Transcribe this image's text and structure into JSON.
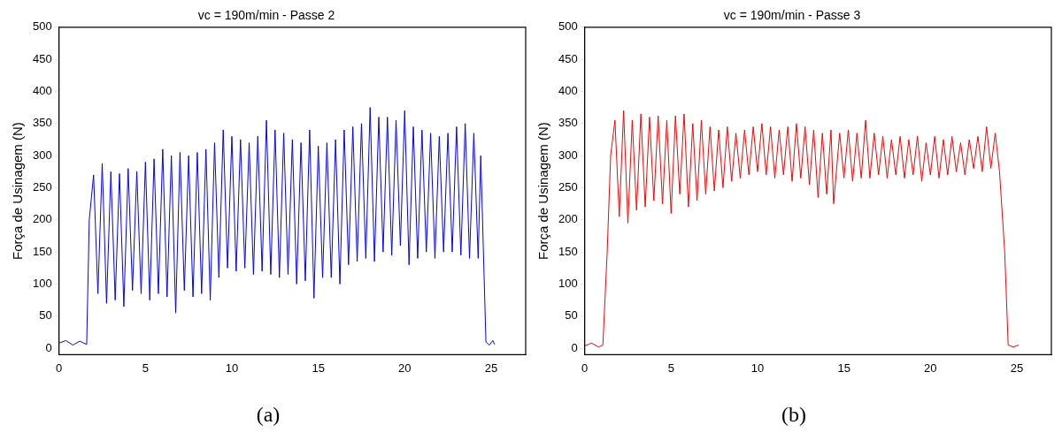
{
  "chart_data": [
    {
      "type": "line",
      "title": "vc = 190m/min - Passe 2",
      "ylabel": "Força de Usinagem (N)",
      "xlim": [
        0,
        27
      ],
      "xticks": [
        0,
        5,
        10,
        15,
        20,
        25
      ],
      "ylim": [
        -10,
        500
      ],
      "yticks": [
        0,
        50,
        100,
        150,
        200,
        250,
        300,
        350,
        400,
        450,
        500
      ],
      "grid": false,
      "annotations": [
        "(a)"
      ],
      "series": [
        {
          "color": "#0000ff",
          "x": [
            0,
            0.4,
            0.8,
            1.2,
            1.6,
            1.75,
            2,
            2.25,
            2.5,
            2.75,
            3,
            3.25,
            3.5,
            3.75,
            4,
            4.25,
            4.5,
            4.75,
            5,
            5.25,
            5.5,
            5.75,
            6,
            6.25,
            6.5,
            6.75,
            7,
            7.25,
            7.5,
            7.75,
            8,
            8.25,
            8.5,
            8.75,
            9,
            9.25,
            9.5,
            9.75,
            10,
            10.25,
            10.5,
            10.75,
            11,
            11.25,
            11.5,
            11.75,
            12,
            12.25,
            12.5,
            12.75,
            13,
            13.25,
            13.5,
            13.75,
            14,
            14.25,
            14.5,
            14.75,
            15,
            15.25,
            15.5,
            15.75,
            16,
            16.25,
            16.5,
            16.75,
            17,
            17.25,
            17.5,
            17.75,
            18,
            18.25,
            18.5,
            18.75,
            19,
            19.25,
            19.5,
            19.75,
            20,
            20.25,
            20.5,
            20.75,
            21,
            21.25,
            21.5,
            21.75,
            22,
            22.25,
            22.5,
            22.75,
            23,
            23.25,
            23.5,
            23.75,
            24,
            24.25,
            24.4,
            24.7,
            24.9,
            25.1,
            25.2
          ],
          "values": [
            8,
            12,
            5,
            11,
            6,
            200,
            270,
            85,
            288,
            70,
            275,
            75,
            272,
            65,
            280,
            90,
            275,
            85,
            290,
            75,
            295,
            85,
            310,
            80,
            300,
            55,
            305,
            90,
            300,
            80,
            305,
            85,
            310,
            75,
            320,
            110,
            340,
            125,
            330,
            120,
            325,
            125,
            320,
            115,
            330,
            120,
            355,
            115,
            340,
            110,
            335,
            115,
            325,
            100,
            320,
            105,
            340,
            78,
            315,
            110,
            320,
            110,
            325,
            100,
            340,
            130,
            345,
            135,
            350,
            140,
            375,
            135,
            360,
            150,
            360,
            145,
            355,
            160,
            370,
            130,
            345,
            140,
            340,
            150,
            335,
            140,
            330,
            150,
            335,
            150,
            345,
            145,
            350,
            140,
            335,
            140,
            300,
            10,
            5,
            12,
            6
          ]
        }
      ]
    },
    {
      "type": "line",
      "title": "vc = 190m/min - Passe 3",
      "ylabel": "Força de Usinagem (N)",
      "xlim": [
        0,
        27
      ],
      "xticks": [
        0,
        5,
        10,
        15,
        20,
        25
      ],
      "ylim": [
        -10,
        500
      ],
      "yticks": [
        0,
        50,
        100,
        150,
        200,
        250,
        300,
        350,
        400,
        450,
        500
      ],
      "grid": false,
      "annotations": [
        "(b)"
      ],
      "series": [
        {
          "color": "#ff0000",
          "x": [
            0,
            0.4,
            0.8,
            1.05,
            1.3,
            1.5,
            1.75,
            2,
            2.25,
            2.5,
            2.75,
            3,
            3.25,
            3.5,
            3.75,
            4,
            4.25,
            4.5,
            4.75,
            5,
            5.25,
            5.5,
            5.75,
            6,
            6.25,
            6.5,
            6.75,
            7,
            7.25,
            7.5,
            7.75,
            8,
            8.25,
            8.5,
            8.75,
            9,
            9.25,
            9.5,
            9.75,
            10,
            10.25,
            10.5,
            10.75,
            11,
            11.25,
            11.5,
            11.75,
            12,
            12.25,
            12.5,
            12.75,
            13,
            13.25,
            13.5,
            13.75,
            14,
            14.25,
            14.4,
            14.75,
            15,
            15.25,
            15.5,
            15.75,
            16,
            16.25,
            16.5,
            16.75,
            17,
            17.25,
            17.5,
            17.75,
            18,
            18.25,
            18.5,
            18.75,
            19,
            19.25,
            19.5,
            19.75,
            20,
            20.25,
            20.5,
            20.75,
            21,
            21.25,
            21.5,
            21.75,
            22,
            22.25,
            22.5,
            22.75,
            23,
            23.25,
            23.5,
            23.75,
            24,
            24.3,
            24.5,
            24.8,
            25.1
          ],
          "values": [
            4,
            8,
            2,
            5,
            150,
            300,
            355,
            205,
            370,
            195,
            355,
            215,
            365,
            220,
            360,
            230,
            362,
            225,
            355,
            210,
            362,
            240,
            365,
            220,
            350,
            230,
            355,
            240,
            345,
            245,
            340,
            250,
            345,
            260,
            335,
            265,
            340,
            270,
            345,
            275,
            350,
            270,
            345,
            265,
            340,
            270,
            345,
            260,
            350,
            265,
            345,
            255,
            340,
            235,
            335,
            240,
            340,
            225,
            335,
            265,
            340,
            260,
            335,
            265,
            355,
            265,
            335,
            270,
            330,
            265,
            325,
            270,
            330,
            265,
            325,
            270,
            330,
            260,
            320,
            270,
            330,
            265,
            325,
            270,
            330,
            275,
            320,
            270,
            325,
            280,
            330,
            275,
            345,
            280,
            335,
            275,
            150,
            5,
            2,
            5
          ]
        }
      ]
    }
  ]
}
